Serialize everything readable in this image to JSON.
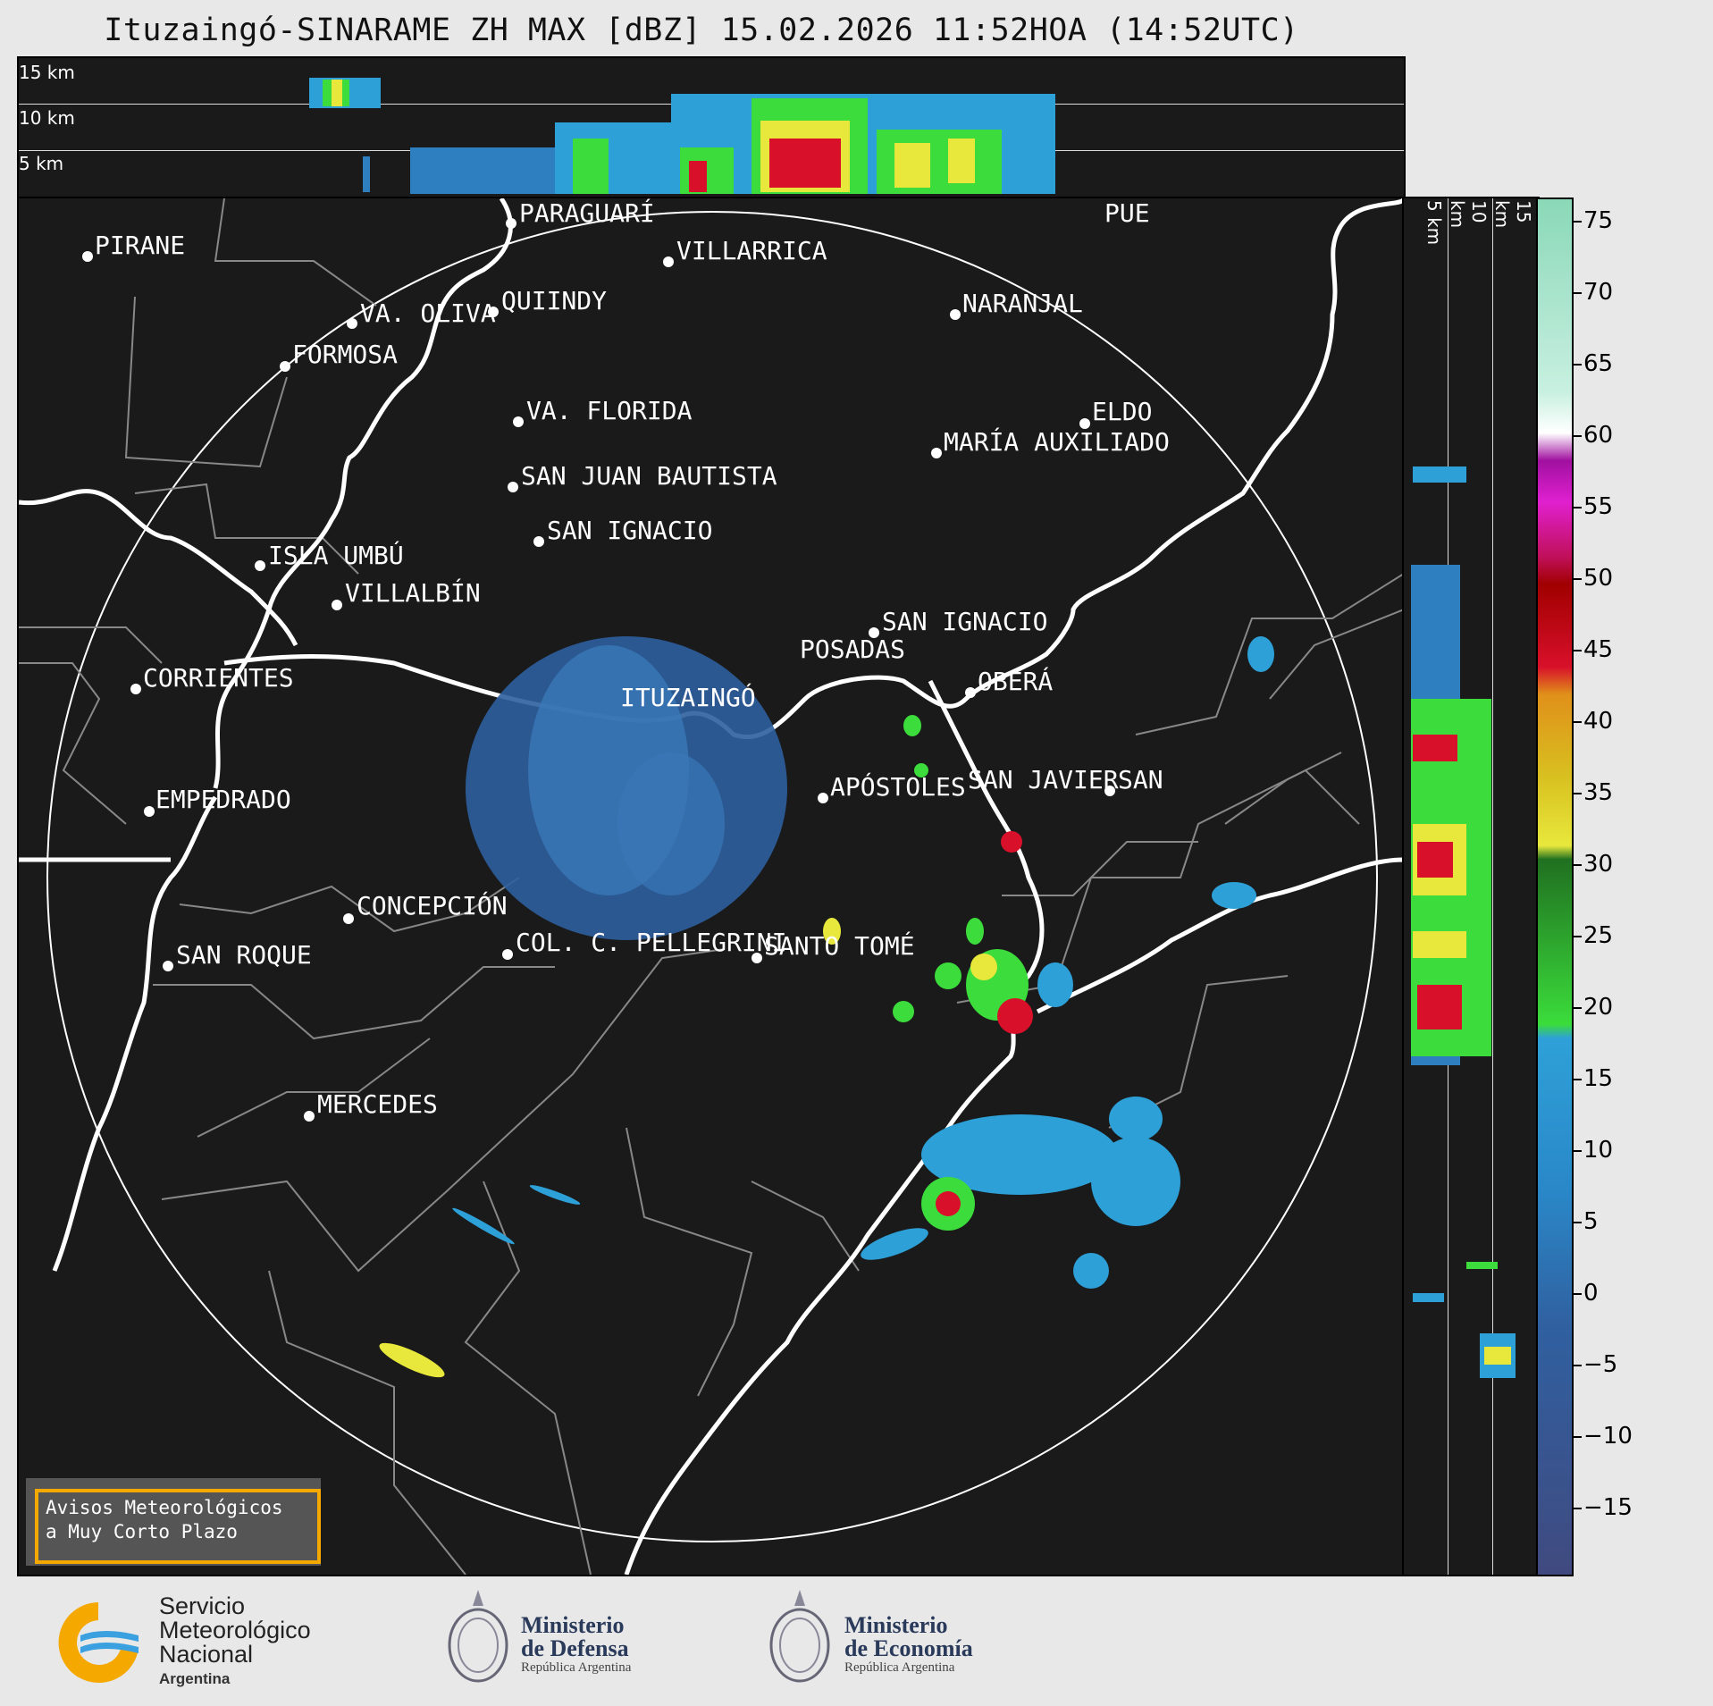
{
  "title": "Ituzaingó-SINARAME ZH MAX [dBZ] 15.02.2026 11:52HOA (14:52UTC)",
  "top_panel": {
    "levels": [
      "15 km",
      "10 km",
      "5 km"
    ]
  },
  "side_panel": {
    "levels": [
      "5 km",
      "10 km",
      "15 km"
    ]
  },
  "colorbar": {
    "ticks": [
      "75",
      "70",
      "65",
      "60",
      "55",
      "50",
      "45",
      "40",
      "35",
      "30",
      "25",
      "20",
      "15",
      "10",
      "5",
      "0",
      "−5",
      "−10",
      "−15"
    ],
    "colors": {
      "no_echo": "#1a1a1a",
      "low": "#3d5a9a",
      "blue": "#2ea0d8",
      "green": "#3bdc3b",
      "yellow": "#e8e83c",
      "orange": "#e0901a",
      "red": "#d8102a",
      "magenta": "#c020c0",
      "white": "#ffffff",
      "teal": "#8ad8b8"
    }
  },
  "cities": [
    {
      "name": "PIRANE"
    },
    {
      "name": "PARAGUARÍ"
    },
    {
      "name": "VILLARRICA"
    },
    {
      "name": "QUIINDY"
    },
    {
      "name": "VA. OLIVA"
    },
    {
      "name": "NARANJAL"
    },
    {
      "name": "FORMOSA"
    },
    {
      "name": "ELDO"
    },
    {
      "name": "VA. FLORIDA"
    },
    {
      "name": "MARÍA AUXILIADO"
    },
    {
      "name": "SAN JUAN BAUTISTA"
    },
    {
      "name": "SAN IGNACIO"
    },
    {
      "name": "ISLA UMBÚ"
    },
    {
      "name": "VILLALBÍN"
    },
    {
      "name": "SAN IGNACIO"
    },
    {
      "name": "POSADAS"
    },
    {
      "name": "CORRIENTES"
    },
    {
      "name": "ITUZAINGÓ"
    },
    {
      "name": "OBERÁ"
    },
    {
      "name": "APÓSTOLES"
    },
    {
      "name": "SAN JAVIER"
    },
    {
      "name": "SAN"
    },
    {
      "name": "EMPEDRADO"
    },
    {
      "name": "CONCEPCIÓN"
    },
    {
      "name": "COL. C. PELLEGRINI"
    },
    {
      "name": "SANTO TOMÉ"
    },
    {
      "name": "SAN ROQUE"
    },
    {
      "name": "MERCEDES"
    },
    {
      "name": "PUE"
    }
  ],
  "notice": {
    "line1": "Avisos Meteorológicos",
    "line2": "a Muy Corto Plazo"
  },
  "footer": {
    "smn": {
      "line1": "Servicio",
      "line2": "Meteorológico",
      "line3": "Nacional",
      "line4": "Argentina"
    },
    "defensa": {
      "line1": "Ministerio",
      "line2": "de Defensa",
      "line3": "República Argentina"
    },
    "economia": {
      "line1": "Ministerio",
      "line2": "de Economía",
      "line3": "República Argentina"
    }
  }
}
